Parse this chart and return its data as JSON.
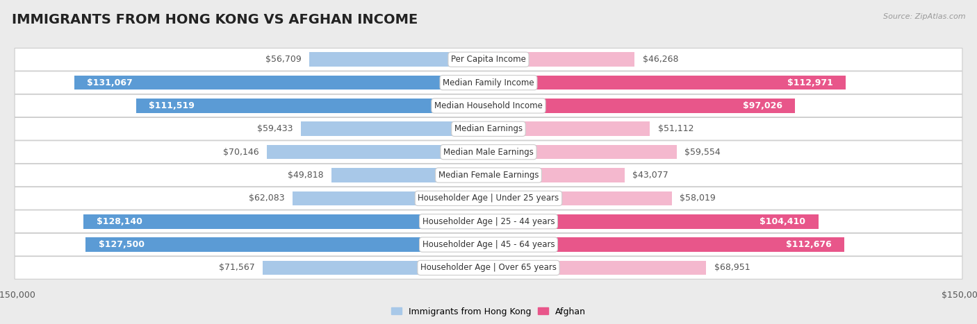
{
  "title": "IMMIGRANTS FROM HONG KONG VS AFGHAN INCOME",
  "source": "Source: ZipAtlas.com",
  "categories": [
    "Per Capita Income",
    "Median Family Income",
    "Median Household Income",
    "Median Earnings",
    "Median Male Earnings",
    "Median Female Earnings",
    "Householder Age | Under 25 years",
    "Householder Age | 25 - 44 years",
    "Householder Age | 45 - 64 years",
    "Householder Age | Over 65 years"
  ],
  "hk_values": [
    56709,
    131067,
    111519,
    59433,
    70146,
    49818,
    62083,
    128140,
    127500,
    71567
  ],
  "af_values": [
    46268,
    112971,
    97026,
    51112,
    59554,
    43077,
    58019,
    104410,
    112676,
    68951
  ],
  "hk_labels": [
    "$56,709",
    "$131,067",
    "$111,519",
    "$59,433",
    "$70,146",
    "$49,818",
    "$62,083",
    "$128,140",
    "$127,500",
    "$71,567"
  ],
  "af_labels": [
    "$46,268",
    "$112,971",
    "$97,026",
    "$51,112",
    "$59,554",
    "$43,077",
    "$58,019",
    "$104,410",
    "$112,676",
    "$68,951"
  ],
  "hk_color_light": "#a8c8e8",
  "hk_color_dark": "#5b9bd5",
  "af_color_light": "#f4b8ce",
  "af_color_dark": "#e8568a",
  "inside_threshold": 80000,
  "max_val": 150000,
  "legend_hk": "Immigrants from Hong Kong",
  "legend_af": "Afghan",
  "background_color": "#ebebeb",
  "row_bg_color": "#ffffff",
  "bar_height": 0.62,
  "title_fontsize": 14,
  "label_fontsize": 9,
  "category_fontsize": 8.5,
  "axis_label_fontsize": 9
}
